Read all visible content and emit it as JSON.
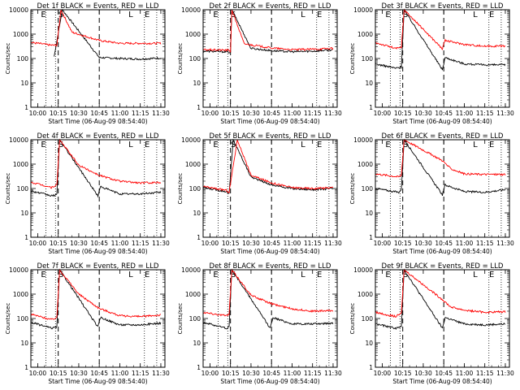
{
  "figure": {
    "xlabel": "Start Time (06-Aug-09 08:54:40)",
    "ylabel": "Counts/sec"
  },
  "x_ticks": [
    "10:00",
    "10:15",
    "10:30",
    "10:45",
    "11:00",
    "11:15",
    "11:30"
  ],
  "y_ticks": [
    "1",
    "10",
    "100",
    "1000",
    "10000"
  ],
  "marker_labels": [
    "E",
    "S",
    "L",
    "E"
  ],
  "markers": {
    "dotted_times": [
      "10:06",
      "10:13",
      "11:18",
      "11:27"
    ],
    "dashed_times": [
      "10:15",
      "10:45"
    ]
  },
  "colors": {
    "events": "#000000",
    "lld": "#ff0000",
    "axes": "#000000"
  },
  "chart_data": [
    {
      "type": "line",
      "title": "Det 1f BLACK = Events, RED = LLD",
      "xlabel": "Start Time (06-Aug-09 08:54:40)",
      "ylabel": "Counts/sec",
      "y_scale": "log",
      "xlim": [
        "09:55",
        "11:33"
      ],
      "ylim": [
        1,
        10000
      ],
      "series": [
        {
          "name": "Events",
          "color": "#000000",
          "x": [
            "10:12",
            "10:18",
            "10:45",
            "11:00",
            "11:15",
            "11:30"
          ],
          "values": [
            120,
            10000,
            110,
            100,
            95,
            105
          ]
        },
        {
          "name": "LLD",
          "color": "#ff0000",
          "x": [
            "09:55",
            "10:00",
            "10:10",
            "10:14",
            "10:17",
            "10:25",
            "10:45",
            "11:00",
            "11:30"
          ],
          "values": [
            450,
            420,
            350,
            350,
            10000,
            1200,
            550,
            420,
            420
          ]
        }
      ]
    },
    {
      "type": "line",
      "title": "Det 2f BLACK = Events, RED = LLD",
      "xlabel": "Start Time (06-Aug-09 08:54:40)",
      "ylabel": "Counts/sec",
      "y_scale": "log",
      "xlim": [
        "09:55",
        "11:33"
      ],
      "ylim": [
        1,
        10000
      ],
      "series": [
        {
          "name": "Events",
          "color": "#000000",
          "x": [
            "09:55",
            "10:13",
            "10:15",
            "10:16",
            "10:30",
            "10:45",
            "11:00",
            "11:15",
            "11:30"
          ],
          "values": [
            200,
            190,
            170,
            10000,
            260,
            210,
            190,
            200,
            230
          ]
        },
        {
          "name": "LLD",
          "color": "#ff0000",
          "x": [
            "09:55",
            "10:13",
            "10:15",
            "10:16",
            "10:25",
            "10:45",
            "11:00",
            "11:15",
            "11:30"
          ],
          "values": [
            230,
            220,
            200,
            10000,
            400,
            270,
            230,
            240,
            260
          ]
        }
      ]
    },
    {
      "type": "line",
      "title": "Det 3f BLACK = Events, RED = LLD",
      "xlabel": "Start Time (06-Aug-09 08:54:40)",
      "ylabel": "Counts/sec",
      "y_scale": "log",
      "xlim": [
        "09:55",
        "11:33"
      ],
      "ylim": [
        1,
        10000
      ],
      "series": [
        {
          "name": "Events",
          "color": "#000000",
          "x": [
            "09:55",
            "10:10",
            "10:14",
            "10:16",
            "10:44",
            "10:46",
            "11:00",
            "11:15",
            "11:30"
          ],
          "values": [
            60,
            40,
            45,
            10000,
            35,
            110,
            60,
            55,
            55
          ]
        },
        {
          "name": "LLD",
          "color": "#ff0000",
          "x": [
            "09:55",
            "10:10",
            "10:14",
            "10:16",
            "10:44",
            "10:46",
            "11:00",
            "11:15",
            "11:30"
          ],
          "values": [
            450,
            260,
            280,
            10000,
            250,
            550,
            380,
            320,
            330
          ]
        }
      ]
    },
    {
      "type": "line",
      "title": "Det 4f BLACK = Events, RED = LLD",
      "xlabel": "Start Time (06-Aug-09 08:54:40)",
      "ylabel": "Counts/sec",
      "y_scale": "log",
      "xlim": [
        "09:55",
        "11:33"
      ],
      "ylim": [
        1,
        10000
      ],
      "series": [
        {
          "name": "Events",
          "color": "#000000",
          "x": [
            "09:55",
            "10:10",
            "10:14",
            "10:16",
            "10:44",
            "10:46",
            "11:00",
            "11:15",
            "11:30"
          ],
          "values": [
            80,
            50,
            55,
            10000,
            50,
            120,
            60,
            60,
            70
          ]
        },
        {
          "name": "LLD",
          "color": "#ff0000",
          "x": [
            "09:55",
            "10:10",
            "10:14",
            "10:16",
            "10:30",
            "10:45",
            "11:00",
            "11:15",
            "11:30"
          ],
          "values": [
            180,
            110,
            140,
            10000,
            900,
            350,
            200,
            170,
            180
          ]
        }
      ]
    },
    {
      "type": "line",
      "title": "Det 5f BLACK = Events, RED = LLD",
      "xlabel": "Start Time (06-Aug-09 08:54:40)",
      "ylabel": "Counts/sec",
      "y_scale": "log",
      "xlim": [
        "09:55",
        "11:33"
      ],
      "ylim": [
        1,
        10000
      ],
      "series": [
        {
          "name": "Events",
          "color": "#000000",
          "x": [
            "09:55",
            "10:12",
            "10:14",
            "10:17",
            "10:30",
            "10:45",
            "11:00",
            "11:15",
            "11:30"
          ],
          "values": [
            110,
            75,
            60,
            10000,
            300,
            140,
            100,
            90,
            100
          ]
        },
        {
          "name": "LLD",
          "color": "#ff0000",
          "x": [
            "09:55",
            "10:12",
            "10:14",
            "10:20",
            "10:30",
            "10:45",
            "11:00",
            "11:15",
            "11:30"
          ],
          "values": [
            120,
            85,
            70,
            10000,
            350,
            170,
            110,
            100,
            110
          ]
        }
      ]
    },
    {
      "type": "line",
      "title": "Det 6f BLACK = Events, RED = LLD",
      "xlabel": "Start Time (06-Aug-09 08:54:40)",
      "ylabel": "Counts/sec",
      "y_scale": "log",
      "xlim": [
        "09:55",
        "11:33"
      ],
      "ylim": [
        1,
        10000
      ],
      "series": [
        {
          "name": "Events",
          "color": "#000000",
          "x": [
            "09:55",
            "10:12",
            "10:14",
            "10:16",
            "10:44",
            "10:46",
            "11:00",
            "11:15",
            "11:30"
          ],
          "values": [
            100,
            70,
            90,
            10000,
            55,
            140,
            75,
            70,
            90
          ]
        },
        {
          "name": "LLD",
          "color": "#ff0000",
          "x": [
            "09:55",
            "10:12",
            "10:14",
            "10:16",
            "10:44",
            "10:50",
            "11:00",
            "11:15",
            "11:30"
          ],
          "values": [
            400,
            300,
            350,
            10000,
            1400,
            650,
            400,
            380,
            380
          ]
        }
      ]
    },
    {
      "type": "line",
      "title": "Det 7f BLACK = Events, RED = LLD",
      "xlabel": "Start Time (06-Aug-09 08:54:40)",
      "ylabel": "Counts/sec",
      "y_scale": "log",
      "xlim": [
        "09:55",
        "11:33"
      ],
      "ylim": [
        1,
        10000
      ],
      "series": [
        {
          "name": "Events",
          "color": "#000000",
          "x": [
            "09:55",
            "10:10",
            "10:14",
            "10:16",
            "10:44",
            "10:46",
            "11:00",
            "11:15",
            "11:30"
          ],
          "values": [
            70,
            40,
            45,
            10000,
            45,
            110,
            55,
            55,
            65
          ]
        },
        {
          "name": "LLD",
          "color": "#ff0000",
          "x": [
            "09:55",
            "10:10",
            "10:14",
            "10:16",
            "10:30",
            "10:45",
            "11:00",
            "11:15",
            "11:30"
          ],
          "values": [
            150,
            90,
            110,
            10000,
            1000,
            260,
            130,
            120,
            140
          ]
        }
      ]
    },
    {
      "type": "line",
      "title": "Det 8f BLACK = Events, RED = LLD",
      "xlabel": "Start Time (06-Aug-09 08:54:40)",
      "ylabel": "Counts/sec",
      "y_scale": "log",
      "xlim": [
        "09:55",
        "11:33"
      ],
      "ylim": [
        1,
        10000
      ],
      "series": [
        {
          "name": "Events",
          "color": "#000000",
          "x": [
            "09:55",
            "10:12",
            "10:14",
            "10:16",
            "10:44",
            "10:46",
            "11:00",
            "11:15",
            "11:30"
          ],
          "values": [
            70,
            40,
            45,
            10000,
            40,
            110,
            60,
            60,
            65
          ]
        },
        {
          "name": "LLD",
          "color": "#ff0000",
          "x": [
            "09:55",
            "10:12",
            "10:14",
            "10:16",
            "10:30",
            "10:45",
            "11:00",
            "11:15",
            "11:30"
          ],
          "values": [
            180,
            130,
            150,
            10000,
            900,
            400,
            250,
            200,
            210
          ]
        }
      ]
    },
    {
      "type": "line",
      "title": "Det 9f BLACK = Events, RED = LLD",
      "xlabel": "Start Time (06-Aug-09 08:54:40)",
      "ylabel": "Counts/sec",
      "y_scale": "log",
      "xlim": [
        "09:55",
        "11:33"
      ],
      "ylim": [
        1,
        10000
      ],
      "series": [
        {
          "name": "Events",
          "color": "#000000",
          "x": [
            "09:55",
            "10:10",
            "10:14",
            "10:16",
            "10:44",
            "10:46",
            "11:00",
            "11:15",
            "11:30"
          ],
          "values": [
            60,
            40,
            45,
            10000,
            40,
            110,
            60,
            55,
            60
          ]
        },
        {
          "name": "LLD",
          "color": "#ff0000",
          "x": [
            "09:55",
            "10:10",
            "10:14",
            "10:16",
            "10:44",
            "10:50",
            "11:00",
            "11:15",
            "11:30"
          ],
          "values": [
            180,
            120,
            160,
            10000,
            600,
            300,
            220,
            180,
            190
          ]
        }
      ]
    }
  ]
}
